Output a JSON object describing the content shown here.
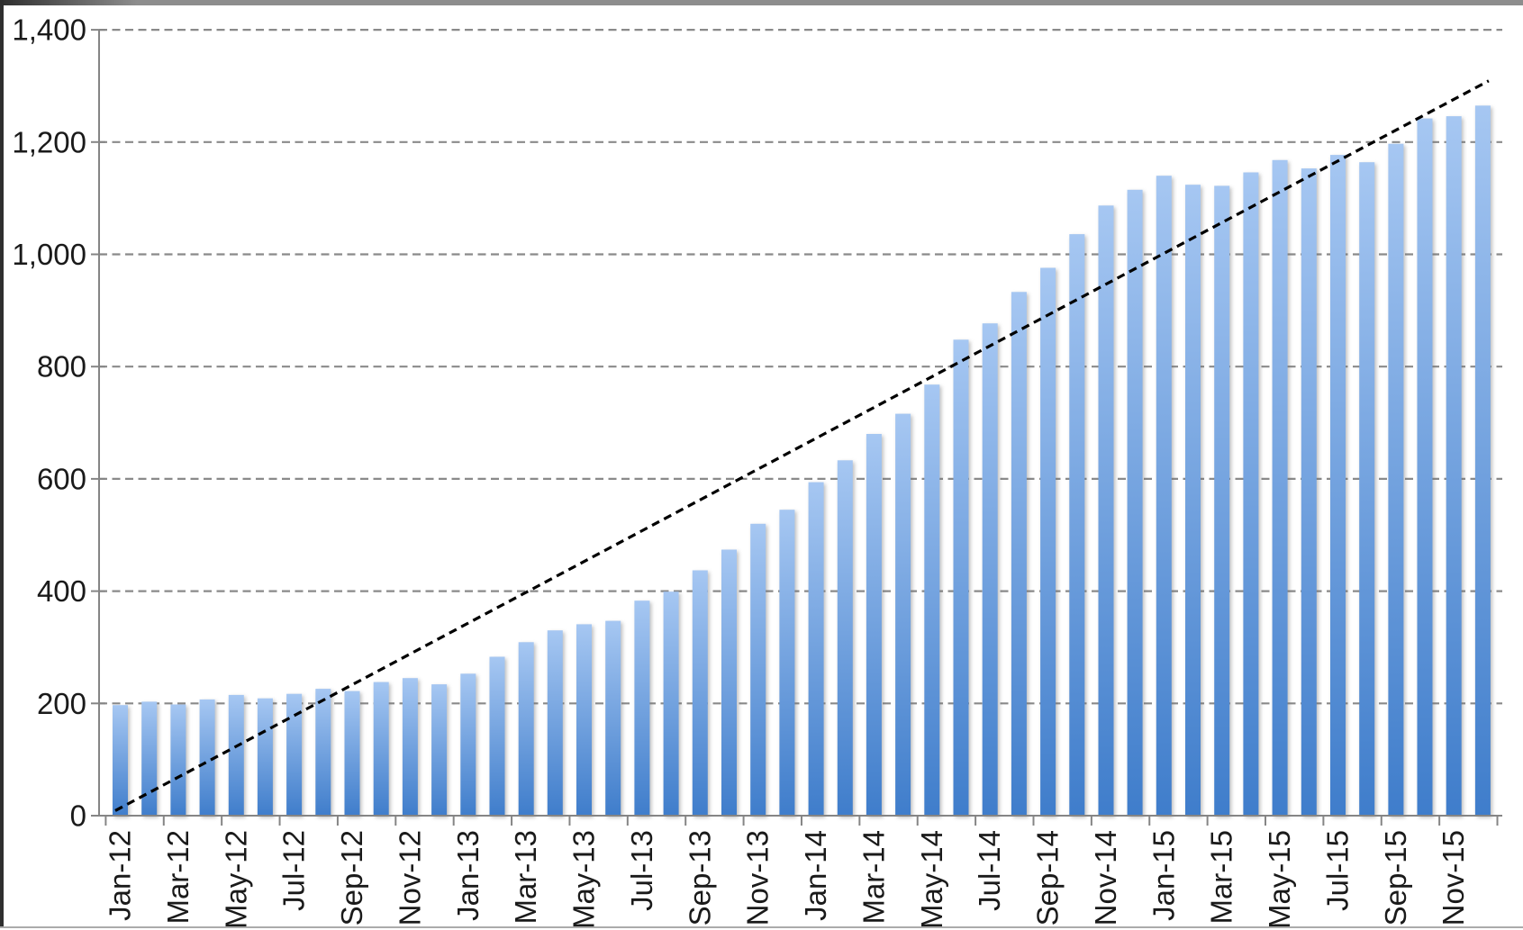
{
  "chart_data": {
    "type": "bar",
    "title": "",
    "xlabel": "",
    "ylabel": "",
    "legend": false,
    "grid": true,
    "categories": [
      "Jan-12",
      "Feb-12",
      "Mar-12",
      "Apr-12",
      "May-12",
      "Jun-12",
      "Jul-12",
      "Aug-12",
      "Sep-12",
      "Oct-12",
      "Nov-12",
      "Dec-12",
      "Jan-13",
      "Feb-13",
      "Mar-13",
      "Apr-13",
      "May-13",
      "Jun-13",
      "Jul-13",
      "Aug-13",
      "Sep-13",
      "Oct-13",
      "Nov-13",
      "Dec-13",
      "Jan-14",
      "Feb-14",
      "Mar-14",
      "Apr-14",
      "May-14",
      "Jun-14",
      "Jul-14",
      "Aug-14",
      "Sep-14",
      "Oct-14",
      "Nov-14",
      "Dec-14",
      "Jan-15",
      "Feb-15",
      "Mar-15",
      "Apr-15",
      "May-15",
      "Jun-15",
      "Jul-15",
      "Aug-15",
      "Sep-15",
      "Oct-15",
      "Nov-15",
      "Dec-15"
    ],
    "values": [
      197,
      203,
      198,
      207,
      215,
      209,
      217,
      226,
      222,
      238,
      245,
      234,
      253,
      283,
      309,
      330,
      341,
      347,
      383,
      399,
      437,
      474,
      520,
      545,
      594,
      633,
      680,
      716,
      768,
      848,
      877,
      933,
      976,
      1036,
      1087,
      1115,
      1140,
      1124,
      1122,
      1146,
      1168,
      1153,
      1177,
      1164,
      1197,
      1242,
      1246,
      1265
    ],
    "y_axis": {
      "min": 0,
      "max": 1400,
      "step": 200,
      "tick_labels": [
        "0",
        "200",
        "400",
        "600",
        "800",
        "1,000",
        "1,200",
        "1,400"
      ]
    },
    "x_axis": {
      "label_every_n_months": 2,
      "label_rotation_deg": -90,
      "tick_labels": [
        "Jan-12",
        "Mar-12",
        "May-12",
        "Jul-12",
        "Sep-12",
        "Nov-12",
        "Jan-13",
        "Mar-13",
        "May-13",
        "Jul-13",
        "Sep-13",
        "Nov-13",
        "Jan-14",
        "Mar-14",
        "May-14",
        "Jul-14",
        "Sep-14",
        "Nov-14",
        "Jan-15",
        "Mar-15",
        "May-15",
        "Jul-15",
        "Sep-15",
        "Nov-15"
      ]
    },
    "trendline": {
      "shape": "linear",
      "line_style": "dashed",
      "color": "#000000",
      "start": {
        "month_index": -0.17,
        "value": 9
      },
      "end": {
        "month_index": 47.2,
        "value": 1309
      }
    },
    "colors": {
      "bar_gradient_top": "#A6C7F2",
      "bar_gradient_bottom": "#3F7DCB",
      "gridline": "#8A8A8A",
      "axis": "#858585",
      "trendline": "#000000",
      "text": "#1A1A1A",
      "background": "#FFFFFF",
      "frame_top": "#8D8D8D",
      "frame_left": "#2E2E2E",
      "frame_bottom": "#ABABAB"
    }
  }
}
